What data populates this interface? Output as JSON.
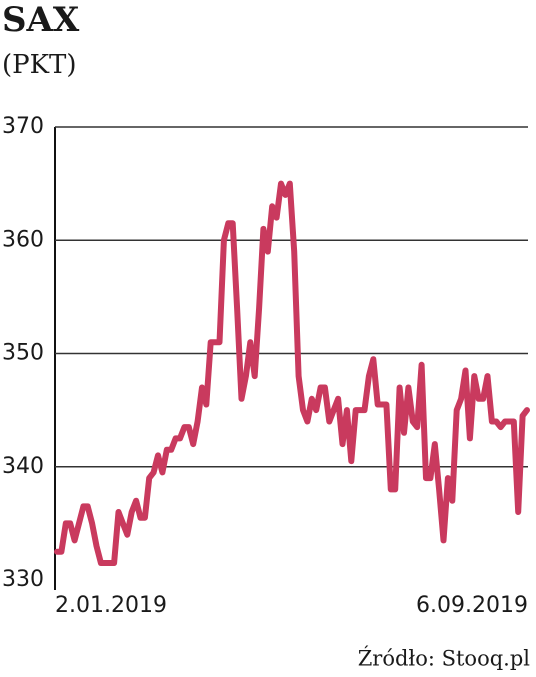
{
  "chart_data": {
    "type": "line",
    "title": "SAX",
    "subtitle": "(PKT)",
    "source": "Źródło: Stooq.pl",
    "categories": [
      "2.01.2019",
      null,
      null,
      null,
      null,
      null,
      null,
      null,
      null,
      null,
      null,
      null,
      null,
      null,
      null,
      null,
      null,
      null,
      null,
      null,
      null,
      null,
      null,
      null,
      null,
      null,
      null,
      null,
      null,
      null,
      null,
      null,
      null,
      null,
      null,
      null,
      null,
      null,
      null,
      null,
      null,
      null,
      null,
      null,
      null,
      null,
      null,
      null,
      null,
      null,
      null,
      null,
      null,
      null,
      null,
      null,
      null,
      null,
      null,
      null,
      null,
      null,
      null,
      null,
      null,
      null,
      null,
      null,
      null,
      null,
      null,
      null,
      null,
      null,
      null,
      null,
      null,
      null,
      null,
      null,
      null,
      null,
      null,
      null,
      null,
      null,
      null,
      null,
      null,
      null,
      null,
      null,
      null,
      null,
      null,
      null,
      null,
      null,
      null,
      null,
      null,
      null,
      null,
      null,
      null,
      null,
      null,
      "6.09.2019"
    ],
    "values": [
      332.5,
      332.5,
      335,
      335,
      333.5,
      335,
      336.5,
      336.5,
      335,
      333,
      331.5,
      331.5,
      331.5,
      331.5,
      336,
      335,
      334,
      336,
      337,
      335.5,
      335.5,
      339,
      339.5,
      341,
      339.5,
      341.5,
      341.5,
      342.5,
      342.5,
      343.5,
      343.5,
      342,
      344,
      347,
      345.5,
      351,
      351,
      351,
      360,
      361.5,
      361.5,
      354,
      346,
      348,
      351,
      348,
      354,
      361,
      359,
      363,
      362,
      365,
      364,
      365,
      359,
      348,
      345,
      344,
      346,
      345,
      347,
      347,
      344,
      345,
      346,
      342,
      345,
      340.5,
      345,
      345,
      345,
      348,
      349.5,
      345.5,
      345.5,
      345.5,
      338,
      338,
      347,
      343,
      347,
      344,
      343.5,
      349,
      339,
      339,
      342,
      338,
      333.5,
      339,
      337,
      345,
      346,
      348.5,
      342.5,
      348,
      346,
      346,
      348,
      344,
      344,
      343.5,
      344,
      344,
      344,
      336,
      344.5,
      345
    ],
    "color": "#c93a5e",
    "ylim": [
      330,
      370
    ],
    "yticks": [
      330,
      340,
      350,
      360,
      370
    ],
    "grid": true
  }
}
